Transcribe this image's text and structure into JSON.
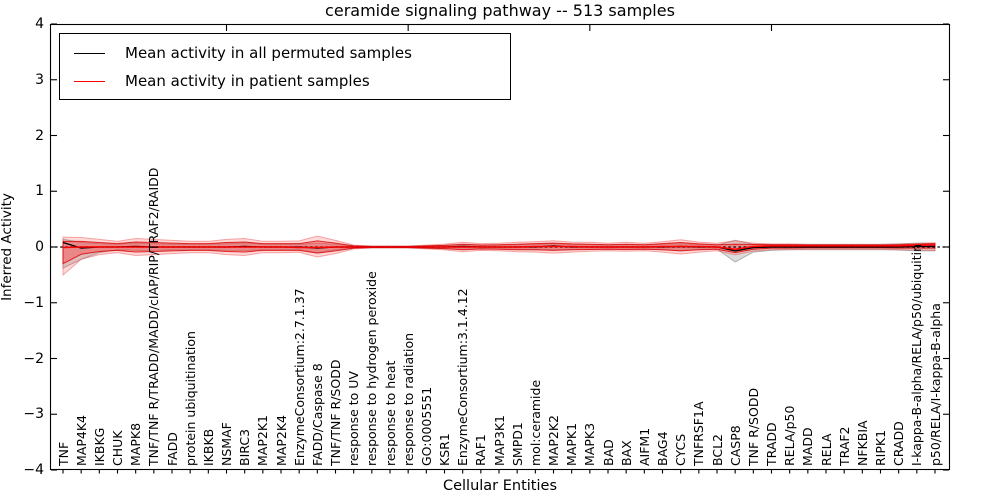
{
  "chart_data": {
    "type": "line",
    "title": "ceramide signaling pathway -- 513 samples",
    "xlabel": "Cellular Entities",
    "ylabel": "Inferred Activity",
    "ylim": [
      -4,
      4
    ],
    "yticks": [
      4,
      3,
      2,
      1,
      0,
      -1,
      -2,
      -3,
      -4
    ],
    "x_major_ticks_at": [
      10,
      20,
      30,
      40
    ],
    "grid": false,
    "legend_position": "upper left",
    "zero_line": {
      "show": true,
      "color": "#000000",
      "style": "dashed"
    },
    "categories": [
      "TNF",
      "MAP4K4",
      "IKBKG",
      "CHUK",
      "MAPK8",
      "TNF/TNF R/TRADD/MADD/cIAP/RIP/TRAF2/RAIDD",
      "FADD",
      "protein ubiquitination",
      "IKBKB",
      "NSMAF",
      "BIRC3",
      "MAP2K1",
      "MAP2K4",
      "EnzymeConsortium:2.7.1.37",
      "FADD/Caspase 8",
      "TNF/TNF R/SODD",
      "response to UV",
      "response to hydrogen peroxide",
      "response to heat",
      "response to radiation",
      "GO:0005551",
      "KSR1",
      "EnzymeConsortium:3.1.4.12",
      "RAF1",
      "MAP3K1",
      "SMPD1",
      "mol:ceramide",
      "MAP2K2",
      "MAPK1",
      "MAPK3",
      "BAD",
      "BAX",
      "AIFM1",
      "BAG4",
      "CYCS",
      "TNFRSF1A",
      "BCL2",
      "CASP8",
      "TNF R/SODD",
      "TRADD",
      "RELA/p50",
      "MADD",
      "RELA",
      "TRAF2",
      "NFKBIA",
      "RIPK1",
      "CRADD",
      "I-kappa-B-alpha/RELA/p50/ubiquitin",
      "p50/RELA/I-kappa-B-alpha"
    ],
    "series": [
      {
        "name": "Mean activity in all permuted samples",
        "color": "#000000",
        "band_fill": "rgba(125,125,125,0.28)",
        "band_edge": "rgba(125,125,125,0.55)",
        "values": [
          0.08,
          -0.02,
          0,
          0,
          0.01,
          0,
          0,
          0,
          0,
          0,
          0.01,
          0,
          0,
          0,
          -0.02,
          0,
          0,
          0,
          0,
          0,
          0,
          0,
          0.01,
          0,
          0,
          0,
          0,
          0.02,
          0,
          0,
          0,
          0,
          0,
          0,
          0.01,
          0,
          0,
          -0.07,
          -0.01,
          0,
          0,
          0,
          0,
          0,
          0,
          0,
          0,
          0.01,
          0.01
        ],
        "band_upper": [
          0.14,
          0.08,
          0.06,
          0.05,
          0.07,
          0.06,
          0.05,
          0.05,
          0.05,
          0.06,
          0.07,
          0.05,
          0.05,
          0.05,
          0.07,
          0.05,
          0.02,
          0.015,
          0.015,
          0.015,
          0.02,
          0.03,
          0.04,
          0.03,
          0.035,
          0.04,
          0.05,
          0.06,
          0.045,
          0.04,
          0.035,
          0.04,
          0.035,
          0.05,
          0.06,
          0.045,
          0.035,
          0.12,
          0.05,
          0.05,
          0.05,
          0.05,
          0.05,
          0.05,
          0.05,
          0.05,
          0.055,
          0.07,
          0.07
        ],
        "band_lower": [
          -0.38,
          -0.22,
          -0.1,
          -0.05,
          -0.06,
          -0.06,
          -0.05,
          -0.05,
          -0.05,
          -0.06,
          -0.06,
          -0.05,
          -0.05,
          -0.05,
          -0.1,
          -0.05,
          -0.02,
          -0.015,
          -0.015,
          -0.015,
          -0.02,
          -0.03,
          -0.04,
          -0.03,
          -0.035,
          -0.04,
          -0.05,
          -0.05,
          -0.045,
          -0.04,
          -0.035,
          -0.04,
          -0.035,
          -0.05,
          -0.06,
          -0.045,
          -0.035,
          -0.27,
          -0.09,
          -0.06,
          -0.05,
          -0.05,
          -0.05,
          -0.05,
          -0.05,
          -0.05,
          -0.055,
          -0.07,
          -0.07
        ]
      },
      {
        "name": "Mean activity in patient samples",
        "color": "#ff0000",
        "band_fill": "rgba(255,40,40,0.35)",
        "band_edge": "rgba(215,0,0,0.8)",
        "outer_band_fill": "rgba(255,60,60,0.2)",
        "outer_band_scale": 1.7,
        "values": [
          -0.01,
          0,
          0,
          0,
          0,
          0,
          0,
          0,
          0,
          0,
          0,
          0,
          0,
          -0.01,
          -0.01,
          0,
          0,
          0,
          0,
          0,
          0,
          0,
          0,
          0,
          0,
          0,
          0.01,
          0.01,
          0.01,
          0,
          0,
          0,
          0,
          0.01,
          0.01,
          0.01,
          0,
          -0.04,
          0.01,
          0.02,
          0.02,
          0.02,
          0.02,
          0.02,
          0.02,
          0.02,
          0.02,
          0.03,
          0.04
        ],
        "band_upper": [
          0.1,
          0.1,
          0.08,
          0.06,
          0.09,
          0.08,
          0.07,
          0.06,
          0.06,
          0.08,
          0.09,
          0.06,
          0.06,
          0.06,
          0.11,
          0.07,
          0.02,
          0.01,
          0.01,
          0.01,
          0.02,
          0.03,
          0.05,
          0.035,
          0.04,
          0.05,
          0.06,
          0.07,
          0.055,
          0.05,
          0.04,
          0.05,
          0.04,
          0.06,
          0.08,
          0.055,
          0.04,
          0.05,
          0.045,
          0.04,
          0.04,
          0.035,
          0.035,
          0.035,
          0.035,
          0.035,
          0.04,
          0.05,
          0.06
        ],
        "band_lower": [
          -0.3,
          -0.13,
          -0.08,
          -0.06,
          -0.09,
          -0.08,
          -0.07,
          -0.06,
          -0.06,
          -0.08,
          -0.09,
          -0.06,
          -0.06,
          -0.06,
          -0.11,
          -0.07,
          -0.02,
          -0.01,
          -0.01,
          -0.01,
          -0.02,
          -0.03,
          -0.05,
          -0.035,
          -0.04,
          -0.05,
          -0.05,
          -0.06,
          -0.05,
          -0.045,
          -0.04,
          -0.045,
          -0.04,
          -0.05,
          -0.07,
          -0.05,
          -0.04,
          -0.1,
          -0.04,
          -0.02,
          -0.02,
          -0.015,
          -0.015,
          -0.015,
          -0.015,
          -0.015,
          -0.02,
          -0.02,
          -0.02
        ]
      }
    ]
  }
}
